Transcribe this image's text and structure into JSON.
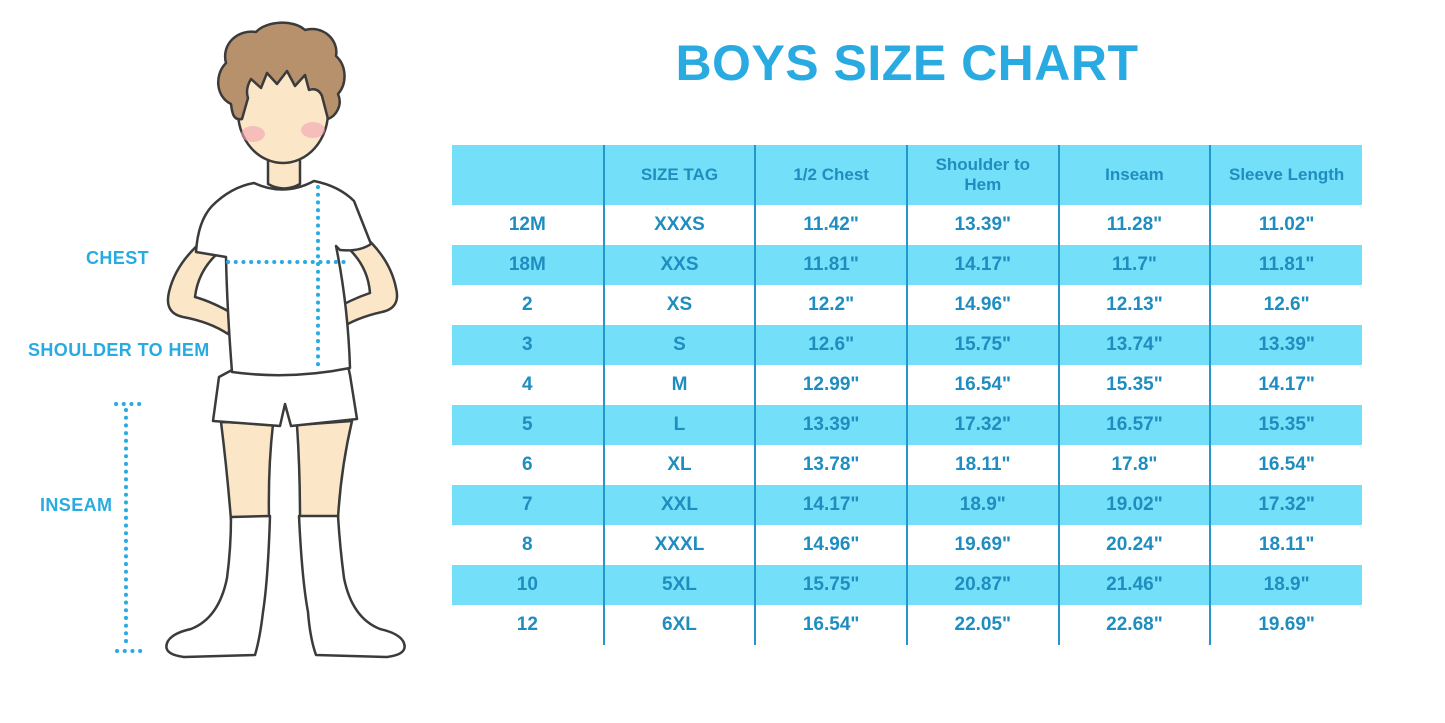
{
  "title": "BOYS SIZE CHART",
  "figure": {
    "description": "cartoon boy in white t-shirt, shorts and knee socks with dotted measurement guides",
    "labels": [
      {
        "id": "chest",
        "text": "CHEST"
      },
      {
        "id": "shoulder-to-hem",
        "text": "SHOULDER TO HEM"
      },
      {
        "id": "inseam",
        "text": "INSEAM"
      }
    ]
  },
  "colors": {
    "accent_blue": "#29ABE2",
    "table_fill_cyan": "#74DFF8",
    "table_line_blue": "#2297CB",
    "table_text_blue": "#1F8DBF",
    "skin": "#FBE7C8",
    "hair_brown": "#B6916C",
    "blush_pink": "#F2A3B3",
    "outline_dark": "#3B3B3B",
    "garment_white": "#FFFFFF"
  },
  "chart_data": {
    "type": "table",
    "title": "BOYS SIZE CHART",
    "columns": [
      "",
      "SIZE TAG",
      "1/2 Chest",
      "Shoulder to Hem",
      "Inseam",
      "Sleeve Length"
    ],
    "rows": [
      [
        "12M",
        "XXXS",
        "11.42\"",
        "13.39\"",
        "11.28\"",
        "11.02\""
      ],
      [
        "18M",
        "XXS",
        "11.81\"",
        "14.17\"",
        "11.7\"",
        "11.81\""
      ],
      [
        "2",
        "XS",
        "12.2\"",
        "14.96\"",
        "12.13\"",
        "12.6\""
      ],
      [
        "3",
        "S",
        "12.6\"",
        "15.75\"",
        "13.74\"",
        "13.39\""
      ],
      [
        "4",
        "M",
        "12.99\"",
        "16.54\"",
        "15.35\"",
        "14.17\""
      ],
      [
        "5",
        "L",
        "13.39\"",
        "17.32\"",
        "16.57\"",
        "15.35\""
      ],
      [
        "6",
        "XL",
        "13.78\"",
        "18.11\"",
        "17.8\"",
        "16.54\""
      ],
      [
        "7",
        "XXL",
        "14.17\"",
        "18.9\"",
        "19.02\"",
        "17.32\""
      ],
      [
        "8",
        "XXXL",
        "14.96\"",
        "19.69\"",
        "20.24\"",
        "18.11\""
      ],
      [
        "10",
        "5XL",
        "15.75\"",
        "20.87\"",
        "21.46\"",
        "18.9\""
      ],
      [
        "12",
        "6XL",
        "16.54\"",
        "22.05\"",
        "22.68\"",
        "19.69\""
      ]
    ],
    "layout": {
      "striped": "alternating white / cyan rows, header cyan",
      "column_dividers": true,
      "outer_border": false
    }
  }
}
